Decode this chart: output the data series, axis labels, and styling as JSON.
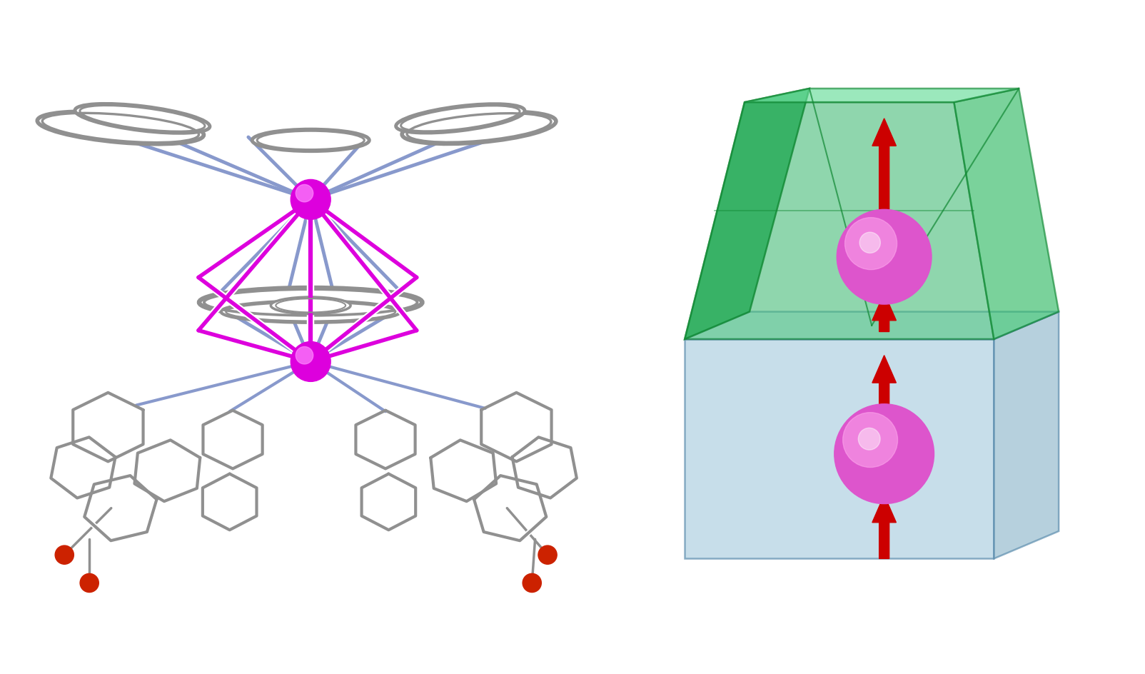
{
  "background_color": "#ffffff",
  "gray": "#909090",
  "blue_purple": "#8899CC",
  "magenta": "#DD00DD",
  "red_col": "#CC2200",
  "sphere_color": "#DD55CC",
  "sphere_highlight": "#FFAAEE",
  "arrow_color": "#CC0000",
  "blue_box_face": "#AACCDD",
  "blue_box_side": "#88AABB",
  "blue_box_top": "#CCEEFF",
  "blue_box_edge": "#6699AA",
  "green_box_front_left": "#22AA55",
  "green_box_front_right": "#33BB66",
  "green_box_top": "#55DD88",
  "green_box_right": "#2D9E55",
  "green_box_edge": "#118833"
}
